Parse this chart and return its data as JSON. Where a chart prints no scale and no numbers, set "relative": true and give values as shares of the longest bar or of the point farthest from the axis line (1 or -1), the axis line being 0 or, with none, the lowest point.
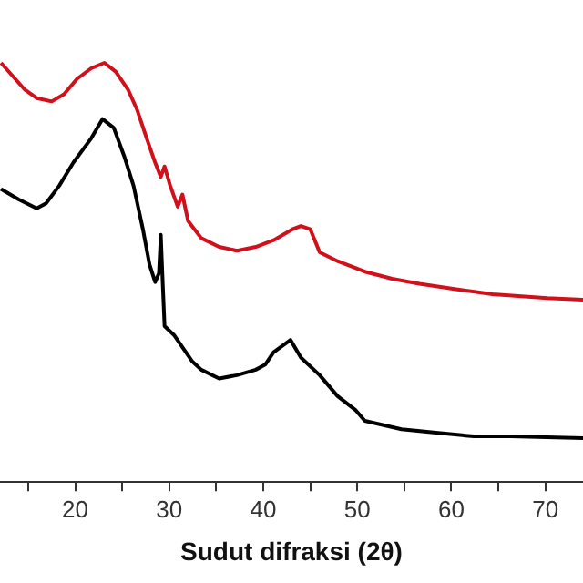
{
  "chart_data": {
    "type": "line",
    "xlabel": "Sudut difraksi (2θ)",
    "relative": true,
    "grid": false,
    "legend": false,
    "marker": "none",
    "line_style": "solid",
    "tick_labels": "x",
    "xlim": [
      12,
      74
    ],
    "xticks": [
      {
        "value": 15,
        "label": null
      },
      20,
      {
        "value": 25,
        "label": null
      },
      30,
      {
        "value": 35,
        "label": null
      },
      40,
      {
        "value": 45,
        "label": null
      },
      50,
      {
        "value": 55,
        "label": null
      },
      60,
      {
        "value": 65,
        "label": null
      },
      70
    ],
    "series": [
      {
        "color": "#d0111b",
        "x": [
          12.1,
          14.6,
          15.9,
          17.5,
          18.8,
          20.2,
          21.7,
          23.1,
          24.3,
          25.6,
          26.6,
          27.6,
          28.5,
          29.1,
          29.5,
          30.1,
          30.9,
          31.4,
          32.0,
          33.4,
          35.3,
          37.2,
          39.2,
          41.1,
          43.1,
          44.0,
          45.0,
          46.0,
          47.9,
          50.8,
          53.7,
          56.6,
          60.5,
          64.4,
          70.2,
          74.0
        ],
        "values": [
          1.0,
          0.937,
          0.916,
          0.908,
          0.925,
          0.962,
          0.987,
          1.0,
          0.979,
          0.937,
          0.887,
          0.82,
          0.762,
          0.728,
          0.753,
          0.707,
          0.657,
          0.686,
          0.623,
          0.582,
          0.561,
          0.552,
          0.561,
          0.577,
          0.603,
          0.611,
          0.603,
          0.548,
          0.527,
          0.502,
          0.485,
          0.473,
          0.46,
          0.448,
          0.439,
          0.435
        ]
      },
      {
        "color": "#000000",
        "x": [
          12.1,
          14.0,
          15.9,
          16.9,
          18.3,
          19.8,
          21.7,
          22.9,
          24.1,
          25.2,
          26.2,
          27.2,
          27.9,
          28.5,
          28.9,
          29.1,
          29.3,
          29.5,
          30.5,
          31.4,
          32.4,
          33.4,
          35.3,
          37.2,
          39.2,
          40.2,
          41.1,
          42.9,
          44.0,
          46.0,
          47.9,
          49.8,
          50.8,
          54.7,
          58.6,
          62.4,
          66.3,
          74.0
        ],
        "values": [
          0.699,
          0.674,
          0.653,
          0.665,
          0.707,
          0.762,
          0.82,
          0.866,
          0.845,
          0.778,
          0.707,
          0.603,
          0.519,
          0.477,
          0.498,
          0.59,
          0.477,
          0.372,
          0.351,
          0.322,
          0.289,
          0.268,
          0.247,
          0.255,
          0.268,
          0.28,
          0.31,
          0.339,
          0.297,
          0.255,
          0.205,
          0.172,
          0.146,
          0.126,
          0.117,
          0.109,
          0.109,
          0.105
        ]
      }
    ]
  }
}
